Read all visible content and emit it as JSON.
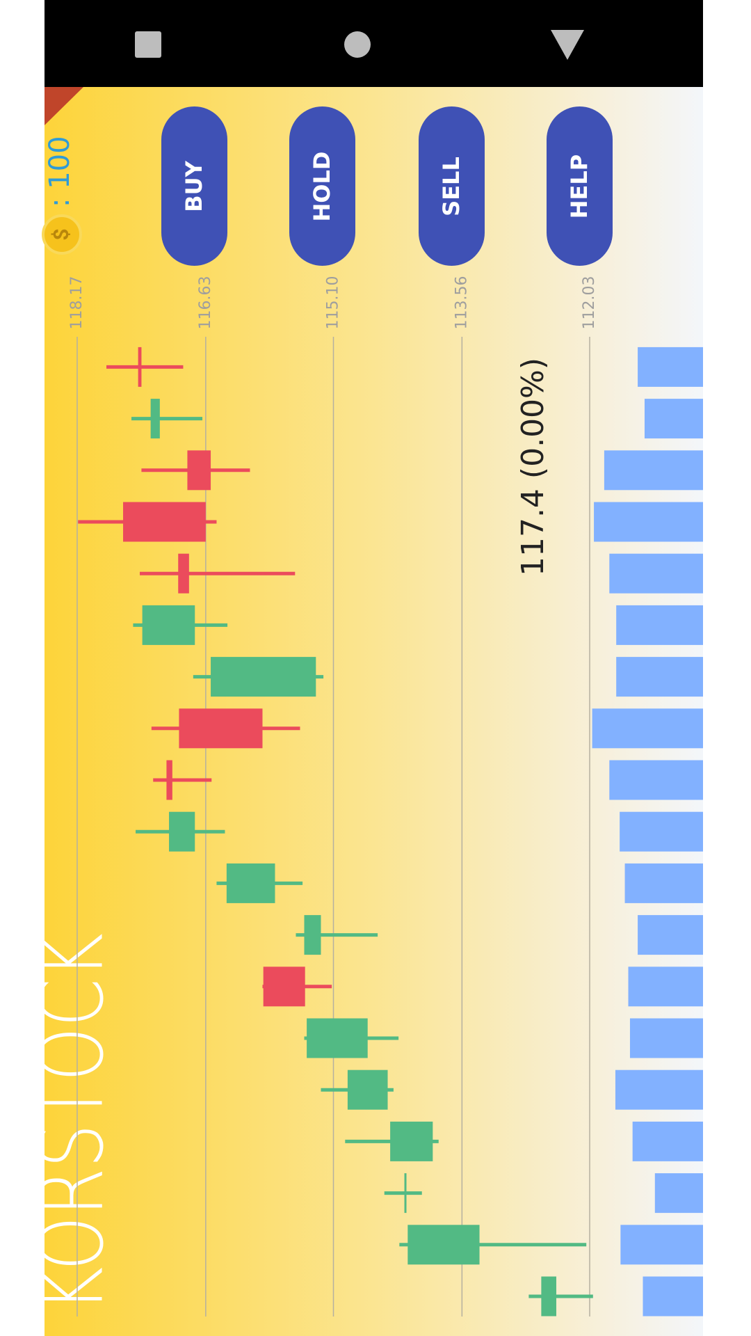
{
  "app": {
    "title": "KORSTOCK",
    "coins": ": 100",
    "price_label": "117.4 (0.00%)"
  },
  "buttons": [
    "BUY",
    "HOLD",
    "SELL",
    "HELP"
  ],
  "chart_data": {
    "type": "candlestick",
    "open": [
      112.43,
      113.35,
      114.24,
      113.91,
      114.45,
      114.69,
      115.94,
      115.25,
      115.8,
      116.76,
      117.1,
      116.95,
      115.31,
      116.76,
      116.96,
      117.62,
      116.85,
      117.18,
      117.44
    ],
    "high": [
      112.76,
      114.31,
      114.49,
      114.96,
      115.25,
      115.45,
      115.95,
      115.55,
      116.5,
      117.47,
      117.26,
      117.28,
      116.78,
      117.5,
      117.42,
      118.16,
      117.4,
      117.52,
      117.82
    ],
    "low": [
      111.99,
      112.07,
      114.04,
      113.84,
      114.38,
      114.32,
      115.12,
      114.57,
      115.47,
      116.4,
      116.56,
      115.5,
      115.22,
      116.37,
      115.56,
      116.5,
      116.1,
      116.67,
      116.9
    ],
    "close": [
      112.61,
      114.21,
      114.25,
      114.42,
      114.93,
      115.42,
      115.44,
      115.45,
      116.38,
      117.07,
      117.03,
      115.95,
      116.57,
      117.39,
      116.83,
      116.63,
      116.57,
      117.29,
      117.4
    ],
    "volumes": [
      70,
      96,
      56,
      82,
      102,
      85,
      87,
      76,
      91,
      97,
      109,
      129,
      101,
      101,
      109,
      127,
      115,
      68,
      76
    ],
    "ylim": [
      112.03,
      118.17
    ],
    "yticks": [
      118.17,
      116.63,
      {
        "value": 115.1,
        "label": "115.10"
      },
      113.56,
      112.03
    ],
    "grid": true,
    "up_color": "#52ba84",
    "down_color": "#eb4b5c",
    "volume_color": "#82b1ff"
  }
}
